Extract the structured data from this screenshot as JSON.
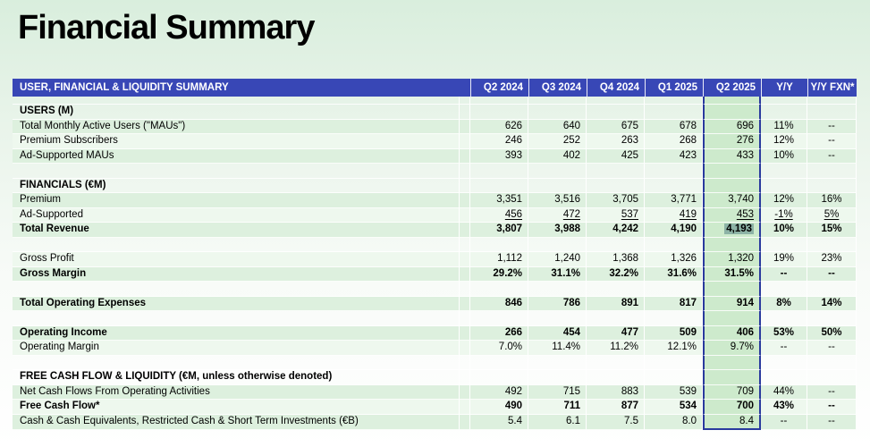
{
  "page": {
    "title": "Financial Summary"
  },
  "table": {
    "header": {
      "label": "USER, FINANCIAL & LIQUIDITY SUMMARY",
      "columns": [
        "Q2 2024",
        "Q3 2024",
        "Q4 2024",
        "Q1 2025",
        "Q2 2025",
        "Y/Y",
        "Y/Y FXN*"
      ]
    },
    "highlight_column": "Q2 2025",
    "found_value": "4,193",
    "rows": [
      {
        "type": "spacer"
      },
      {
        "type": "section",
        "label": "USERS (M)"
      },
      {
        "type": "data",
        "label": "Total Monthly Active Users (\"MAUs\")",
        "values": [
          "626",
          "640",
          "675",
          "678",
          "696",
          "11%",
          "--"
        ],
        "shade": "a"
      },
      {
        "type": "data",
        "label": "Premium Subscribers",
        "values": [
          "246",
          "252",
          "263",
          "268",
          "276",
          "12%",
          "--"
        ],
        "shade": "b"
      },
      {
        "type": "data",
        "label": "Ad-Supported MAUs",
        "values": [
          "393",
          "402",
          "425",
          "423",
          "433",
          "10%",
          "--"
        ],
        "shade": "a"
      },
      {
        "type": "blank"
      },
      {
        "type": "section",
        "label": "FINANCIALS (€M)"
      },
      {
        "type": "data",
        "label": "Premium",
        "values": [
          "3,351",
          "3,516",
          "3,705",
          "3,771",
          "3,740",
          "12%",
          "16%"
        ],
        "shade": "a"
      },
      {
        "type": "data",
        "label": "Ad-Supported",
        "values": [
          "456",
          "472",
          "537",
          "419",
          "453",
          "-1%",
          "5%"
        ],
        "shade": "b",
        "underline_values": true
      },
      {
        "type": "data",
        "label": "Total Revenue",
        "values": [
          "3,807",
          "3,988",
          "4,242",
          "4,190",
          "4,193",
          "10%",
          "15%"
        ],
        "shade": "a",
        "bold": true,
        "found_value_index": 4
      },
      {
        "type": "blank"
      },
      {
        "type": "data",
        "label": "Gross Profit",
        "values": [
          "1,112",
          "1,240",
          "1,368",
          "1,326",
          "1,320",
          "19%",
          "23%"
        ],
        "shade": "b"
      },
      {
        "type": "data",
        "label": "Gross Margin",
        "values": [
          "29.2%",
          "31.1%",
          "32.2%",
          "31.6%",
          "31.5%",
          "--",
          "--"
        ],
        "shade": "a",
        "bold": true
      },
      {
        "type": "blank"
      },
      {
        "type": "data",
        "label": "Total Operating Expenses",
        "values": [
          "846",
          "786",
          "891",
          "817",
          "914",
          "8%",
          "14%"
        ],
        "shade": "a",
        "bold": true
      },
      {
        "type": "blank"
      },
      {
        "type": "data",
        "label": "Operating Income",
        "values": [
          "266",
          "454",
          "477",
          "509",
          "406",
          "53%",
          "50%"
        ],
        "shade": "a",
        "bold": true
      },
      {
        "type": "data",
        "label": "Operating Margin",
        "values": [
          "7.0%",
          "11.4%",
          "11.2%",
          "12.1%",
          "9.7%",
          "--",
          "--"
        ],
        "shade": "b"
      },
      {
        "type": "blank"
      },
      {
        "type": "section",
        "label": "FREE CASH FLOW & LIQUIDITY (€M, unless otherwise denoted)"
      },
      {
        "type": "data",
        "label": "Net Cash Flows From Operating Activities",
        "values": [
          "492",
          "715",
          "883",
          "539",
          "709",
          "44%",
          "--"
        ],
        "shade": "a"
      },
      {
        "type": "data",
        "label": "Free Cash Flow*",
        "values": [
          "490",
          "711",
          "877",
          "534",
          "700",
          "43%",
          "--"
        ],
        "shade": "b",
        "bold": true
      },
      {
        "type": "data",
        "label": "Cash & Cash Equivalents, Restricted Cash & Short Term Investments (€B)",
        "values": [
          "5.4",
          "6.1",
          "7.5",
          "8.0",
          "8.4",
          "--",
          "--"
        ],
        "shade": "a"
      }
    ]
  },
  "colors": {
    "header_bg": "#3847b6",
    "header_text": "#ffffff",
    "row_stripe_green": "#ddf0de",
    "row_stripe_light": "#eef8ee",
    "highlight_column_bg": "#cdeacc",
    "highlight_column_border": "#2a3a9e",
    "found_cell_bg": "#8db3a6",
    "page_background_top": "#d9eedd",
    "title_color": "#000000"
  }
}
